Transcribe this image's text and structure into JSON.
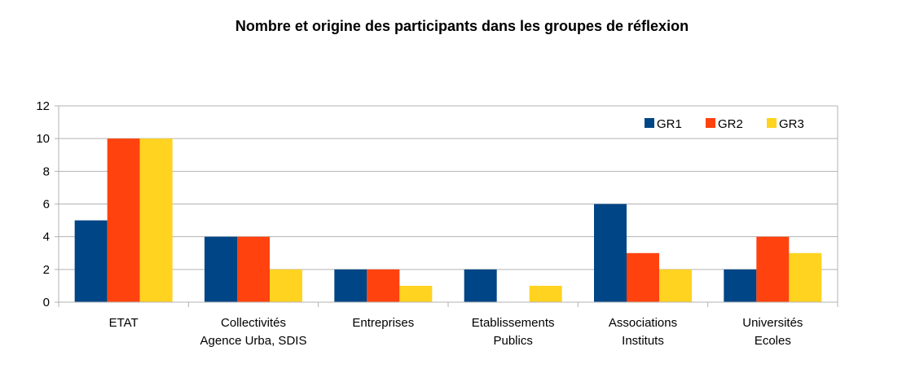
{
  "chart_data": {
    "type": "bar",
    "title": "Nombre et origine des participants dans les groupes de réflexion",
    "xlabel": "",
    "ylabel": "",
    "categories": [
      [
        "ETAT"
      ],
      [
        "Collectivités",
        "Agence Urba, SDIS"
      ],
      [
        "Entreprises"
      ],
      [
        "Etablissements",
        "Publics"
      ],
      [
        "Associations",
        "Instituts"
      ],
      [
        "Universités",
        "Ecoles"
      ]
    ],
    "series": [
      {
        "name": "GR1",
        "color": "#004586",
        "values": [
          5,
          4,
          2,
          2,
          6,
          2
        ]
      },
      {
        "name": "GR2",
        "color": "#ff420e",
        "values": [
          10,
          4,
          2,
          0,
          3,
          4
        ]
      },
      {
        "name": "GR3",
        "color": "#ffd320",
        "values": [
          10,
          2,
          1,
          1,
          2,
          3
        ]
      }
    ],
    "ylim": [
      0,
      12
    ],
    "yticks": [
      0,
      2,
      4,
      6,
      8,
      10,
      12
    ],
    "grid": true,
    "legend_position": "top-right"
  }
}
